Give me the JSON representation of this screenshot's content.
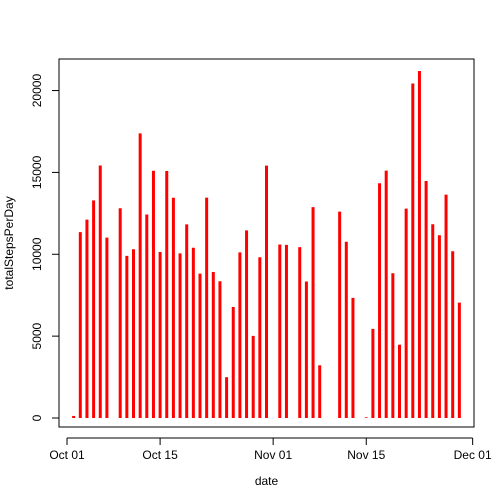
{
  "chart_data": {
    "type": "bar",
    "title": "",
    "xlabel": "date",
    "ylabel": "totalStepsPerDay",
    "x_tick_labels": [
      "Oct 01",
      "Oct 15",
      "Nov 01",
      "Nov 15",
      "Dec 01"
    ],
    "x_tick_dates": [
      "2012-10-01",
      "2012-10-15",
      "2012-11-01",
      "2012-11-15",
      "2012-12-01"
    ],
    "y_ticks": [
      0,
      5000,
      10000,
      15000,
      20000
    ],
    "xlim": [
      "2012-10-01",
      "2012-11-30"
    ],
    "ylim": [
      0,
      21194
    ],
    "color": "#ff0000",
    "grid": false,
    "series": [
      {
        "x": [
          "2012-10-02",
          "2012-10-03",
          "2012-10-04",
          "2012-10-05",
          "2012-10-06",
          "2012-10-07",
          "2012-10-09",
          "2012-10-10",
          "2012-10-11",
          "2012-10-12",
          "2012-10-13",
          "2012-10-14",
          "2012-10-15",
          "2012-10-16",
          "2012-10-17",
          "2012-10-18",
          "2012-10-19",
          "2012-10-20",
          "2012-10-21",
          "2012-10-22",
          "2012-10-23",
          "2012-10-24",
          "2012-10-25",
          "2012-10-26",
          "2012-10-27",
          "2012-10-28",
          "2012-10-29",
          "2012-10-30",
          "2012-10-31",
          "2012-11-02",
          "2012-11-03",
          "2012-11-05",
          "2012-11-06",
          "2012-11-07",
          "2012-11-08",
          "2012-11-11",
          "2012-11-12",
          "2012-11-13",
          "2012-11-15",
          "2012-11-16",
          "2012-11-17",
          "2012-11-18",
          "2012-11-19",
          "2012-11-20",
          "2012-11-21",
          "2012-11-22",
          "2012-11-23",
          "2012-11-24",
          "2012-11-25",
          "2012-11-26",
          "2012-11-27",
          "2012-11-28",
          "2012-11-29"
        ],
        "values": [
          126,
          11352,
          12116,
          13294,
          15420,
          11015,
          12811,
          9900,
          10304,
          17382,
          12426,
          15098,
          10139,
          15084,
          13452,
          10056,
          11829,
          10395,
          8821,
          13460,
          8918,
          8355,
          2492,
          6778,
          10119,
          11458,
          5018,
          9819,
          15414,
          10600,
          10571,
          10439,
          8334,
          12883,
          3219,
          12608,
          10765,
          7336,
          41,
          5441,
          14339,
          15110,
          8841,
          4472,
          12787,
          20427,
          21194,
          14478,
          11834,
          11162,
          13646,
          10183,
          7047
        ]
      }
    ]
  }
}
